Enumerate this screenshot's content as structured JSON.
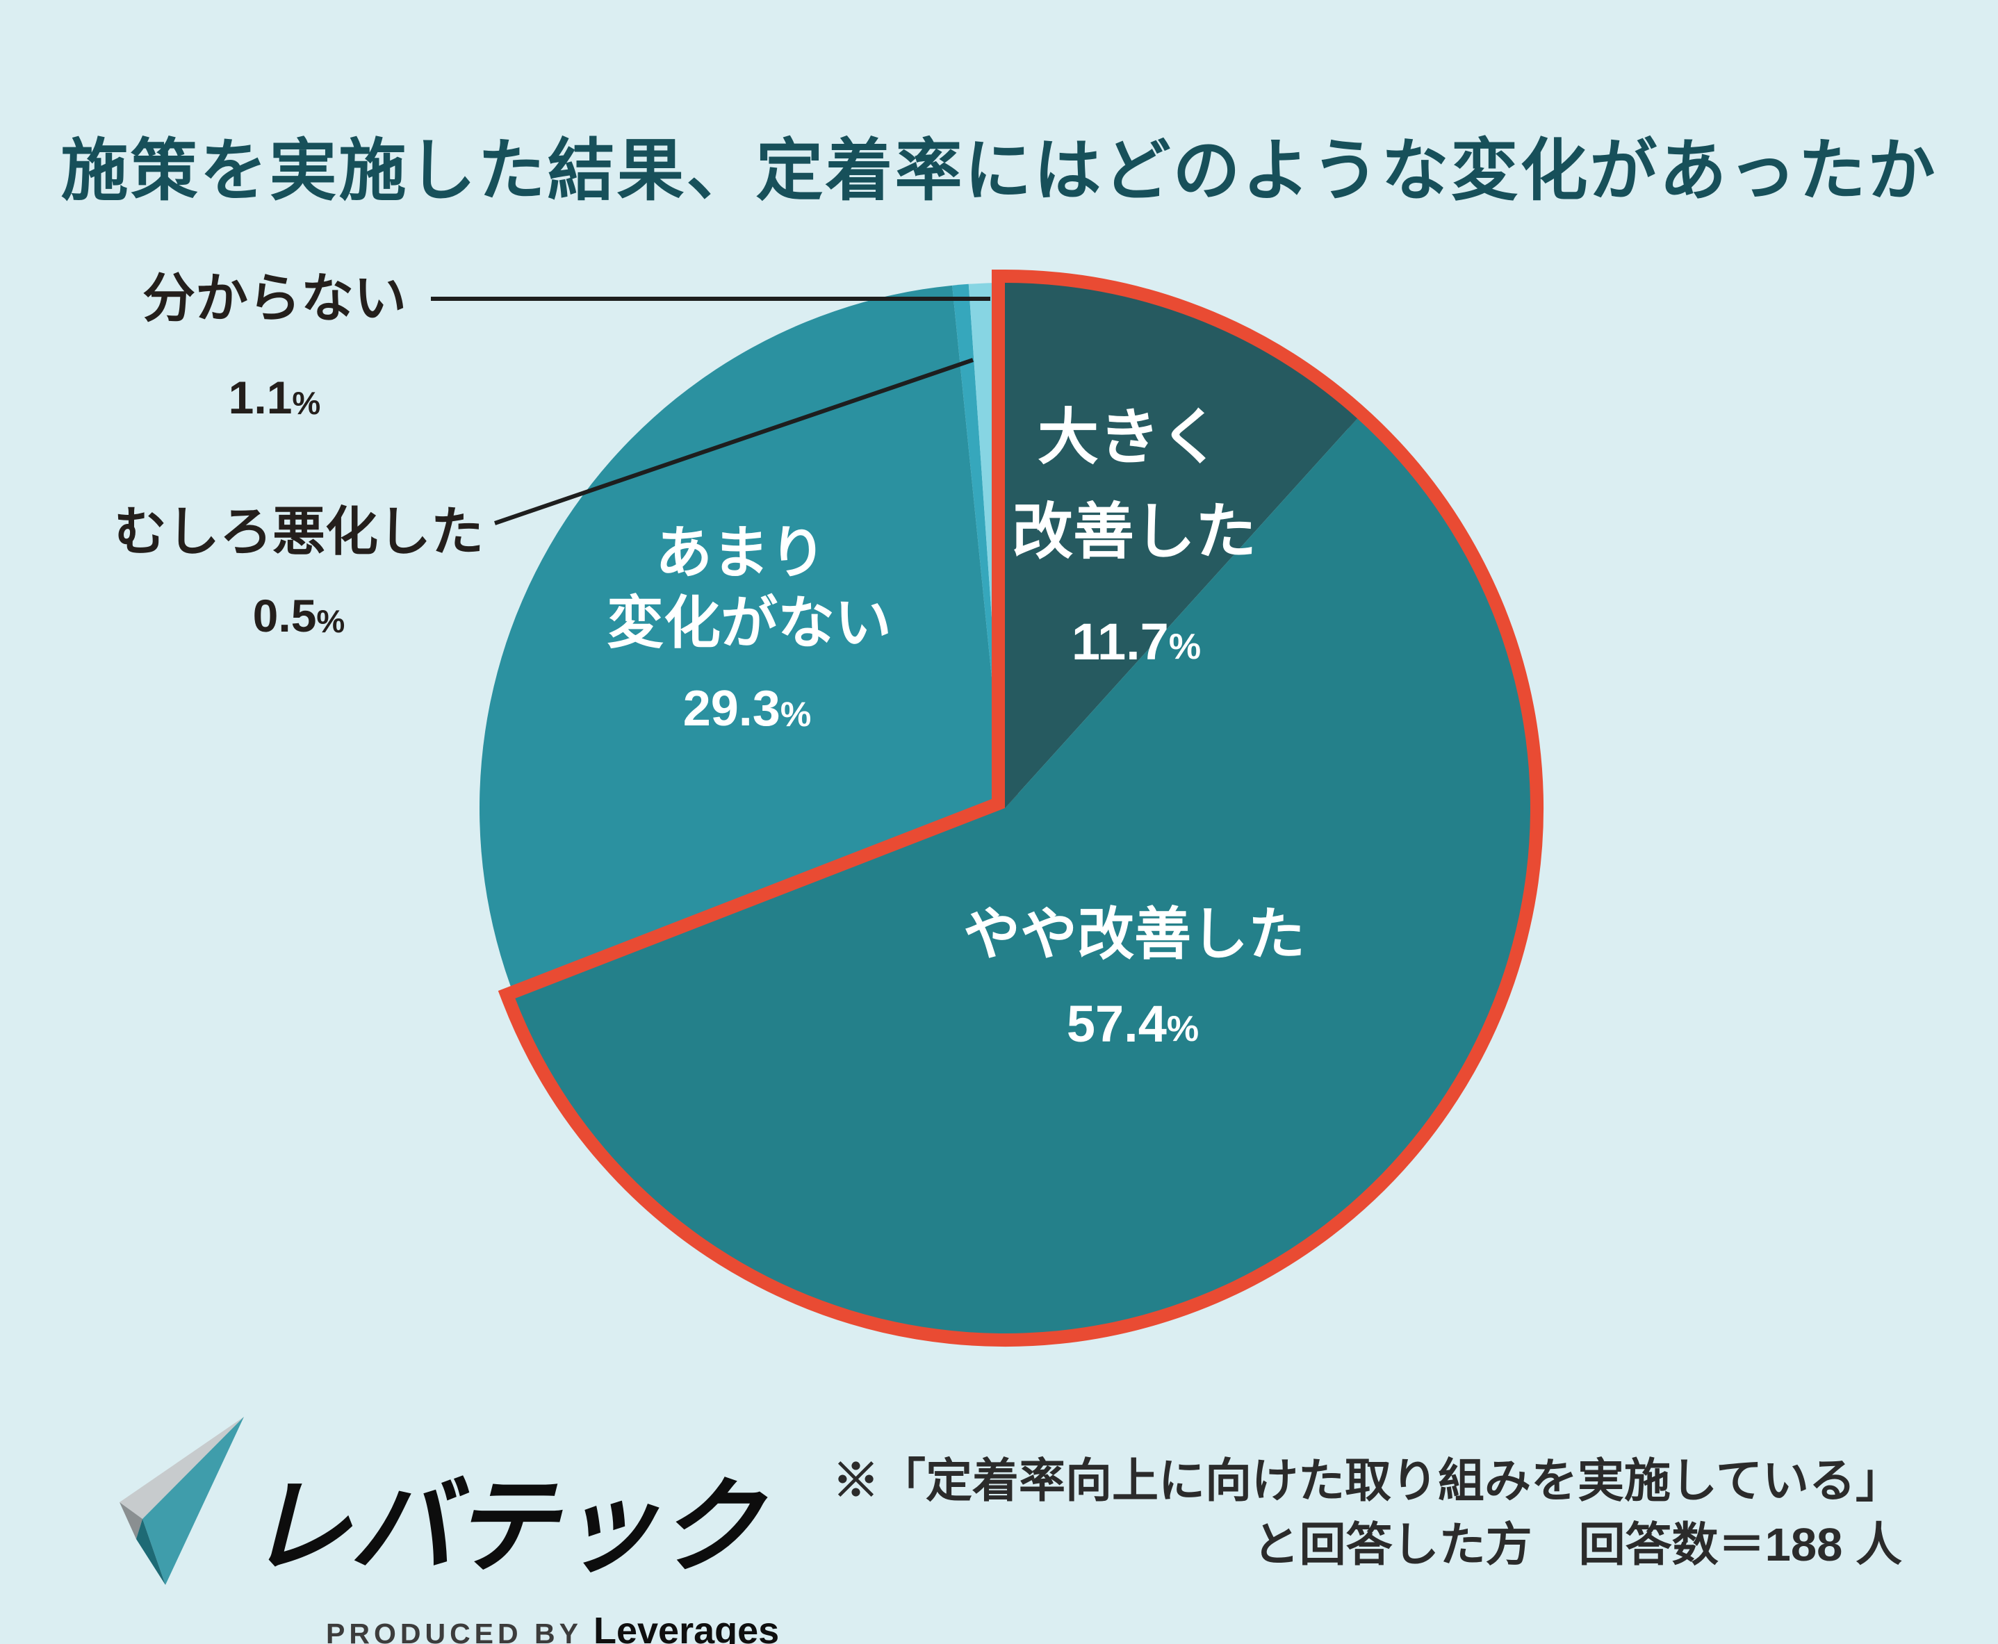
{
  "title": "施策を実施した結果、定着率にはどのような変化があったか",
  "chart_data": {
    "type": "pie",
    "title": "施策を実施した結果、定着率にはどのような変化があったか",
    "unit": "%",
    "start_angle_deg": 0,
    "direction": "clockwise",
    "legend_position": "none",
    "slices": [
      {
        "id": "ookiku-kaizen",
        "label": "大きく改善した",
        "label_lines": [
          "大きく",
          "改善した"
        ],
        "value": 11.7,
        "color": "#265a60",
        "text_color": "#ffffff",
        "highlighted": true,
        "label_outside": false
      },
      {
        "id": "yaya-kaizen",
        "label": "やや改善した",
        "label_lines": [
          "やや改善した"
        ],
        "value": 57.4,
        "color": "#24808a",
        "text_color": "#ffffff",
        "highlighted": true,
        "label_outside": false
      },
      {
        "id": "amari-henka-ga-nai",
        "label": "あまり変化がない",
        "label_lines": [
          "あまり",
          "変化がない"
        ],
        "value": 29.3,
        "color": "#2b91a0",
        "text_color": "#ffffff",
        "highlighted": false,
        "label_outside": false
      },
      {
        "id": "mushiro-akka-shita",
        "label": "むしろ悪化した",
        "label_lines": [
          "むしろ悪化した"
        ],
        "value": 0.5,
        "color": "#36a7bc",
        "text_color": "#241f1c",
        "highlighted": false,
        "label_outside": true
      },
      {
        "id": "wakaranai",
        "label": "分からない",
        "label_lines": [
          "分からない"
        ],
        "value": 1.1,
        "color": "#87d5e3",
        "text_color": "#241f1c",
        "highlighted": false,
        "label_outside": true
      }
    ],
    "highlight_outline_color": "#e94b33"
  },
  "footer": {
    "note_line1": "※「定着率向上に向けた取り組みを実施している」",
    "note_line2": "と回答した方　回答数＝188 人"
  },
  "logo": {
    "brand": "レバテック",
    "byline_prefix": "PRODUCED BY",
    "byline_brand": "Leverages"
  },
  "colors": {
    "background": "#dbeef2",
    "title": "#17505a",
    "outside_label": "#241f1c",
    "leader_line": "#1e1e1e",
    "highlight_outline": "#e94b33",
    "footnote_text": "#2b2b2b"
  }
}
